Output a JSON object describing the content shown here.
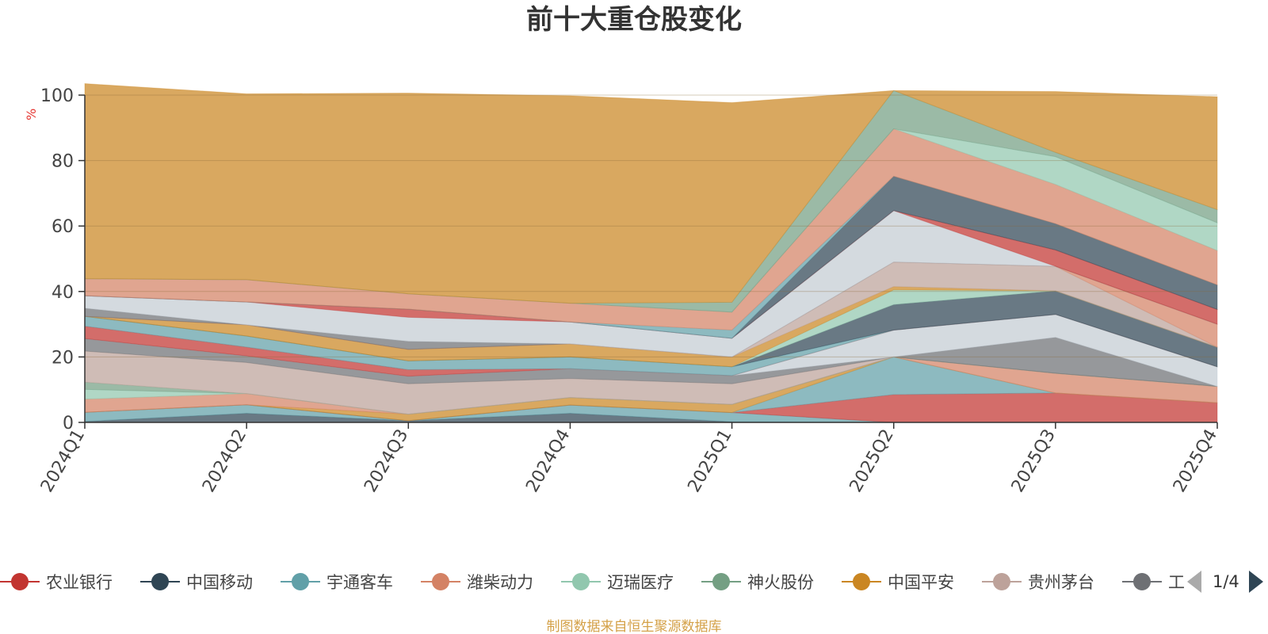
{
  "chart_data": {
    "type": "area",
    "title": "前十大重仓股变化",
    "ylabel": "%",
    "ylim": [
      0,
      100
    ],
    "yticks": [
      0,
      20,
      40,
      60,
      80,
      100
    ],
    "categories": [
      "2024Q1",
      "2024Q2",
      "2024Q3",
      "2024Q4",
      "2025Q1",
      "2025Q2",
      "2025Q3",
      "2025Q4"
    ],
    "series": [
      {
        "name": "",
        "color": "#2f4554",
        "values": [
          0.3,
          2.8,
          0.5,
          2.8,
          0.2,
          0,
          0,
          0
        ]
      },
      {
        "name": "",
        "color": "#61a0a8",
        "values": [
          2.8,
          2.6,
          0,
          2.5,
          2.8,
          0,
          0,
          0
        ]
      },
      {
        "name": "农业银行",
        "color": "#c23531",
        "values": [
          0,
          0,
          0,
          0,
          0,
          8.5,
          9,
          6
        ]
      },
      {
        "name": "宇通客车",
        "color": "#61a0a8",
        "values": [
          0,
          0,
          0,
          0,
          0,
          11.5,
          0,
          0
        ]
      },
      {
        "name": "中国平安",
        "color": "#ca8622",
        "values": [
          0,
          0,
          2,
          2.3,
          2.5,
          0,
          0,
          0
        ]
      },
      {
        "name": "潍柴动力",
        "color": "#d48265",
        "values": [
          4,
          3.4,
          0,
          0,
          0,
          0,
          6,
          5
        ]
      },
      {
        "name": "迈瑞医疗",
        "color": "#91c7ae",
        "values": [
          3,
          0,
          0,
          0,
          0,
          0,
          0,
          0
        ]
      },
      {
        "name": "神火股份",
        "color": "#749f83",
        "values": [
          2.2,
          0,
          0,
          0,
          0,
          0,
          0,
          0
        ]
      },
      {
        "name": "贵州茅台",
        "color": "#bda29a",
        "values": [
          9.5,
          9.5,
          9.3,
          5.8,
          6.3,
          0,
          0,
          0
        ]
      },
      {
        "name": "",
        "color": "#6e7074",
        "values": [
          3.8,
          2,
          2.3,
          3,
          2.5,
          0,
          11,
          0
        ]
      },
      {
        "name": "",
        "color": "#c4ccd3",
        "values": [
          0,
          0,
          0,
          0,
          0,
          8.2,
          7,
          6
        ]
      },
      {
        "name": "",
        "color": "#c23531",
        "values": [
          3.8,
          2.7,
          2,
          0,
          0,
          0,
          0,
          0
        ]
      },
      {
        "name": "",
        "color": "#61a0a8",
        "values": [
          3,
          3.4,
          2.7,
          3.6,
          2.7,
          0,
          0,
          0
        ]
      },
      {
        "name": "",
        "color": "#2f4554",
        "values": [
          0,
          0,
          0,
          0,
          0,
          7.8,
          7.2,
          6
        ]
      },
      {
        "name": "",
        "color": "#91c7ae",
        "values": [
          0,
          0,
          0,
          0,
          0,
          4.5,
          0,
          0
        ]
      },
      {
        "name": "",
        "color": "#ca8622",
        "values": [
          0,
          3.4,
          3.5,
          4,
          3,
          1,
          0,
          0
        ]
      },
      {
        "name": "",
        "color": "#bda29a",
        "values": [
          0,
          0,
          0,
          0,
          0,
          7.5,
          7.5,
          0
        ]
      },
      {
        "name": "",
        "color": "#d48265",
        "values": [
          0,
          0,
          0,
          0,
          0,
          0,
          0,
          7
        ]
      },
      {
        "name": "",
        "color": "#6e7074",
        "values": [
          2.5,
          0,
          2.5,
          0,
          0,
          0,
          0,
          0
        ]
      },
      {
        "name": "",
        "color": "#c4ccd3",
        "values": [
          3.8,
          7,
          7.3,
          6.7,
          5.7,
          15.7,
          0,
          0
        ]
      },
      {
        "name": "",
        "color": "#c23531",
        "values": [
          0,
          0,
          2.5,
          0,
          0,
          0,
          5,
          4.5
        ]
      },
      {
        "name": "",
        "color": "#2f4554",
        "values": [
          0,
          0,
          0,
          0,
          0,
          10.5,
          8,
          7.5
        ]
      },
      {
        "name": "",
        "color": "#61a0a8",
        "values": [
          0,
          0,
          0,
          0,
          2.5,
          0,
          0,
          0
        ]
      },
      {
        "name": "",
        "color": "#d48265",
        "values": [
          5.2,
          6.8,
          4.7,
          5.7,
          5.5,
          14.5,
          12,
          10.5
        ]
      },
      {
        "name": "",
        "color": "#91c7ae",
        "values": [
          0,
          0,
          0,
          0,
          0,
          0,
          8.5,
          8.5
        ]
      },
      {
        "name": "",
        "color": "#749f83",
        "values": [
          0,
          0,
          0,
          0,
          3,
          11.7,
          1.3,
          4
        ]
      },
      {
        "name": "",
        "color": "#ca8622",
        "values": [
          59.6,
          56.8,
          61.3,
          63.4,
          61,
          0,
          18.6,
          34.5
        ]
      }
    ]
  },
  "legend": {
    "items": [
      {
        "label": "农业银行",
        "color": "#c23531"
      },
      {
        "label": "中国移动",
        "color": "#2f4554"
      },
      {
        "label": "宇通客车",
        "color": "#61a0a8"
      },
      {
        "label": "潍柴动力",
        "color": "#d48265"
      },
      {
        "label": "迈瑞医疗",
        "color": "#91c7ae"
      },
      {
        "label": "神火股份",
        "color": "#749f83"
      },
      {
        "label": "中国平安",
        "color": "#ca8622"
      },
      {
        "label": "贵州茅台",
        "color": "#bda29a"
      },
      {
        "label": "工",
        "color": "#6e7074"
      }
    ],
    "page": "1/4"
  },
  "source": "制图数据来自恒生聚源数据库"
}
